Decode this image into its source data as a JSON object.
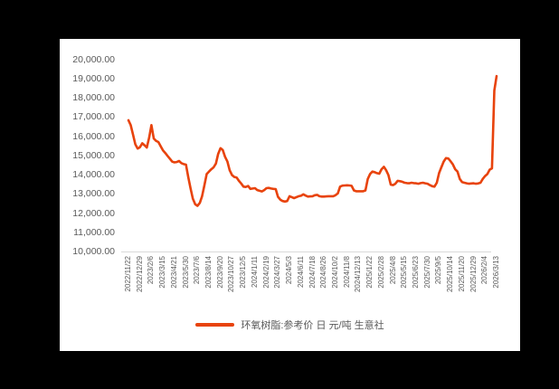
{
  "window": {
    "background_color": "#000000"
  },
  "chart": {
    "canvas_color": "#ffffff",
    "axis_line_color": "#d9d9d9",
    "tick_label_color": "#595959",
    "legend": {
      "label": "环氧树脂:参考价 日 元/吨 生意社",
      "marker_color": "#e8430d"
    }
  },
  "chart_data": {
    "type": "line",
    "title": "",
    "xlabel": "",
    "ylabel": "",
    "ylim": [
      10000,
      20000
    ],
    "grid": false,
    "legend_position": "bottom",
    "y_tick_labels": [
      "20,000.00",
      "19,000.00",
      "18,000.00",
      "17,000.00",
      "16,000.00",
      "15,000.00",
      "14,000.00",
      "13,000.00",
      "12,000.00",
      "11,000.00",
      "10,000.00"
    ],
    "x_tick_labels": [
      "2022/11/22",
      "2022/12/29",
      "2023/2/6",
      "2023/3/15",
      "2023/4/21",
      "2023/5/30",
      "2023/7/6",
      "2023/8/14",
      "2023/9/20",
      "2023/10/27",
      "2023/12/5",
      "2024/1/11",
      "2024/2/19",
      "2024/3/27",
      "2024/5/3",
      "2024/6/11",
      "2024/7/18",
      "2024/8/26",
      "2024/10/2",
      "2024/11/8",
      "2024/12/13",
      "2025/1/22",
      "2025/2/28",
      "2025/4/8",
      "2025/5/15",
      "2025/6/23",
      "2025/7/30",
      "2025/9/5",
      "2025/10/14",
      "2025/11/20",
      "2025/12/29",
      "2026/2/4",
      "2026/3/13"
    ],
    "x_tick_interval_points": 5,
    "series": [
      {
        "name": "环氧树脂:参考价 日 元/吨 生意社",
        "color": "#e8430d",
        "values": [
          16850,
          16600,
          16100,
          15600,
          15380,
          15450,
          15650,
          15550,
          15430,
          15950,
          16600,
          15900,
          15780,
          15720,
          15500,
          15280,
          15150,
          15000,
          14850,
          14700,
          14660,
          14680,
          14730,
          14620,
          14570,
          14540,
          13900,
          13300,
          12770,
          12480,
          12400,
          12550,
          12900,
          13450,
          14050,
          14180,
          14300,
          14400,
          14600,
          15100,
          15400,
          15300,
          14950,
          14700,
          14250,
          14000,
          13900,
          13870,
          13700,
          13560,
          13400,
          13380,
          13430,
          13280,
          13300,
          13320,
          13220,
          13180,
          13150,
          13220,
          13320,
          13330,
          13300,
          13280,
          13270,
          12870,
          12720,
          12650,
          12620,
          12650,
          12900,
          12850,
          12800,
          12850,
          12900,
          12920,
          13000,
          12930,
          12880,
          12890,
          12900,
          12950,
          12970,
          12900,
          12880,
          12880,
          12890,
          12900,
          12900,
          12900,
          12950,
          13050,
          13400,
          13450,
          13460,
          13470,
          13460,
          13440,
          13200,
          13160,
          13160,
          13160,
          13160,
          13200,
          13800,
          14050,
          14180,
          14150,
          14100,
          14070,
          14300,
          14430,
          14250,
          14000,
          13500,
          13480,
          13550,
          13700,
          13680,
          13650,
          13600,
          13580,
          13570,
          13600,
          13580,
          13570,
          13550,
          13580,
          13600,
          13570,
          13550,
          13480,
          13420,
          13400,
          13600,
          14100,
          14400,
          14700,
          14880,
          14860,
          14720,
          14550,
          14300,
          14180,
          13800,
          13640,
          13600,
          13570,
          13550,
          13560,
          13570,
          13550,
          13560,
          13600,
          13800,
          13950,
          14050,
          14280,
          14350,
          18400,
          19150
        ]
      }
    ]
  }
}
